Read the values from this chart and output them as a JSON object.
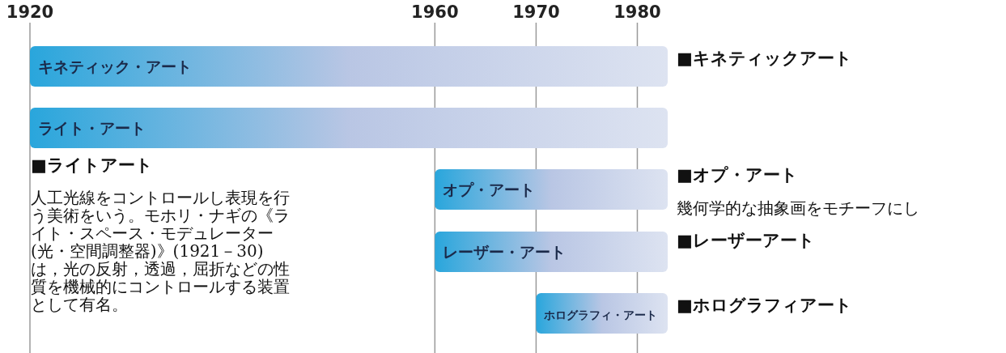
{
  "chart_data": {
    "type": "bar",
    "orientation": "horizontal",
    "categories": [
      "キネティック・アート",
      "ライト・アート",
      "オプ・アート",
      "レーザー・アート",
      "ホログラフィ・アート"
    ],
    "base": [
      1920,
      1920,
      1960,
      1960,
      1970
    ],
    "values": [
      63,
      63,
      23,
      23,
      13
    ],
    "colors": [
      "#29a6dc",
      "#29a6dc",
      "#29a6dc",
      "#29a6dc",
      "#29a6dc"
    ],
    "xlim": [
      1920,
      1983
    ],
    "xticks": [
      1920,
      1960,
      1970,
      1980
    ],
    "grid": "x",
    "annotations": [
      "■キネティックアート",
      "■オプ・アート",
      "幾何学的な抽象画をモチーフにし",
      "■レーザーアート",
      "■ホログラフィアート",
      "■ライトアート",
      "人工光線をコントロールし表現を行う美術をいう。モホリ・ナギの《ライト・スペース・モデュレーター(光・空間調整器)》(1921－30) は，光の反射，透過，屈折などの性質を機械的にコントロールする装置として有名。"
    ]
  }
}
